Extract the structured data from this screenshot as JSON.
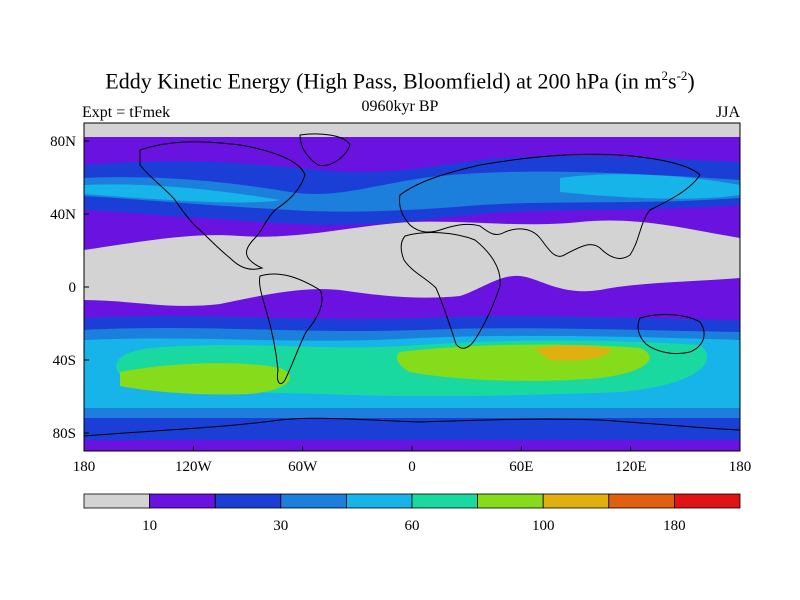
{
  "title": {
    "main": "Eddy Kinetic Energy (High Pass, Bloomfield) at 200 hPa (in m",
    "sup1": "2",
    "mid": "s",
    "sup2": "-2",
    "close": ")"
  },
  "subtitle_left": "Expt = tFmek",
  "subtitle_center": "0960kyr BP",
  "subtitle_right": "JJA",
  "axes": {
    "lat_labels": [
      "80N",
      "40N",
      "0",
      "40S",
      "80S"
    ],
    "lon_labels": [
      "180",
      "120W",
      "60W",
      "0",
      "60E",
      "120E",
      "180"
    ]
  },
  "colorbar": {
    "colors": [
      "#d3d3d3",
      "#6a12e0",
      "#1b3fd6",
      "#1c7fdc",
      "#16b4e8",
      "#19d9a0",
      "#86dc1a",
      "#e0b010",
      "#e06010",
      "#e01414"
    ],
    "labels": [
      "10",
      "30",
      "60",
      "100",
      "180"
    ]
  },
  "colors": {
    "land_outline": "#000000",
    "frame": "#000000"
  }
}
